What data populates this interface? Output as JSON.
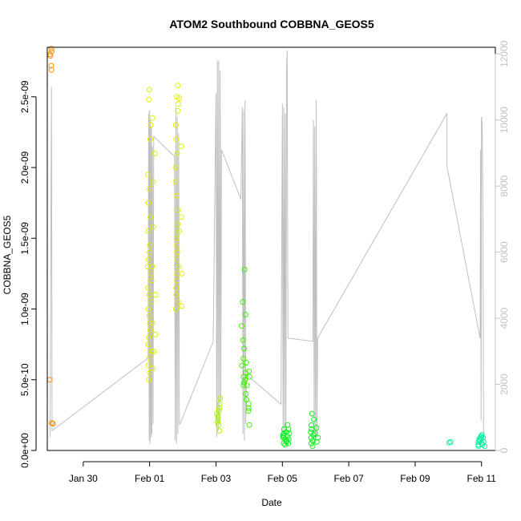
{
  "chart_data": {
    "type": "scatter",
    "title": "ATOM2 Southbound COBBNA_GEOS5",
    "xlabel": "Date",
    "ylabel": "COBBNA_GEOS5",
    "y_ticks": [
      "0.0e+00",
      "5.0e-10",
      "1.0e-09",
      "1.5e-09",
      "2.0e-09",
      "2.5e-09"
    ],
    "y_tick_values": [
      0,
      5e-10,
      1e-09,
      1.5e-09,
      2e-09,
      2.5e-09
    ],
    "ylim": [
      0,
      2.85e-09
    ],
    "x_ticks": [
      "Jan 30",
      "Feb 01",
      "Feb 03",
      "Feb 05",
      "Feb 07",
      "Feb 09",
      "Feb 11"
    ],
    "x_tick_values": [
      "2016-01-30",
      "2016-02-01",
      "2016-02-03",
      "2016-02-05",
      "2016-02-07",
      "2016-02-09",
      "2016-02-11"
    ],
    "xlim": [
      "2016-01-28T22:00",
      "2016-02-11T10:00"
    ],
    "right_axis": {
      "ticks": [
        "0",
        "2000",
        "4000",
        "6000",
        "8000",
        "10000",
        "12000"
      ],
      "tick_values": [
        0,
        2000,
        4000,
        6000,
        8000,
        10000,
        12000
      ],
      "ylim": [
        0,
        12200
      ],
      "color": "#c0c0c0"
    },
    "colors": {
      "orange": "#ff8c00",
      "yellow": "#e0f000",
      "yellow_green": "#b0f000",
      "green": "#40f000",
      "bright_green": "#10f020",
      "teal": "#00f0a0",
      "altitude_line": "#bfbfbf"
    },
    "series": [
      {
        "color": "orange",
        "points": [
          {
            "x": "2016-01-29T01:00",
            "y": [
              2.84e-09,
              2.82e-09,
              2.8e-09,
              2.79e-09,
              2.72e-09,
              2.69e-09,
              5e-10,
              1.9e-10,
              1.95e-10
            ]
          }
        ]
      },
      {
        "color": "yellow",
        "points": [
          {
            "x": "2016-02-01T00:00",
            "y": [
              2.55e-09,
              2.48e-09,
              2.3e-09,
              2.2e-09,
              1.95e-09,
              1.85e-09,
              1.75e-09,
              1.65e-09,
              1.55e-09,
              1.45e-09,
              1.4e-09,
              1.35e-09,
              1.3e-09,
              1.25e-09,
              1.2e-09,
              1.15e-09,
              1.1e-09,
              1.05e-09,
              1e-09,
              9.5e-10,
              9e-10,
              8.5e-10,
              8e-10,
              7.5e-10,
              7e-10,
              6.5e-10,
              6e-10,
              5.5e-10,
              5e-10
            ]
          },
          {
            "x": "2016-02-01T03:00",
            "y": [
              2.35e-09,
              2.1e-09,
              1.9e-09,
              1.58e-09,
              1.3e-09,
              1.1e-09,
              9e-10,
              8.2e-10,
              7e-10,
              5.8e-10
            ]
          },
          {
            "x": "2016-02-01T20:00",
            "y": [
              2.58e-09,
              2.5e-09,
              2.45e-09,
              2.4e-09,
              2.3e-09,
              2.2e-09,
              2.1e-09,
              2e-09,
              1.9e-09,
              1.8e-09,
              1.7e-09,
              1.6e-09,
              1.55e-09,
              1.5e-09,
              1.45e-09,
              1.4e-09,
              1.35e-09,
              1.3e-09,
              1.25e-09,
              1.2e-09,
              1.15e-09,
              1.1e-09,
              1.05e-09,
              1e-09
            ]
          },
          {
            "x": "2016-02-01T22:00",
            "y": [
              2.49e-09,
              2.15e-09,
              1.65e-09,
              1.25e-09,
              1.02e-09
            ]
          }
        ]
      },
      {
        "color": "yellow_green",
        "points": [
          {
            "x": "2016-02-03T02:00",
            "y": [
              3.7e-10,
              3.3e-10,
              3e-10,
              2.8e-10,
              2.6e-10,
              2.4e-10,
              2.2e-10,
              2e-10,
              1.8e-10,
              1.4e-10
            ]
          }
        ]
      },
      {
        "color": "green",
        "points": [
          {
            "x": "2016-02-03T20:00",
            "y": [
              1.28e-09,
              1.05e-09,
              9.6e-10,
              8.8e-10,
              7.8e-10,
              7.2e-10,
              6.5e-10,
              6e-10,
              5.5e-10,
              5.2e-10,
              5e-10,
              4.8e-10,
              4.6e-10
            ]
          },
          {
            "x": "2016-02-03T23:00",
            "y": [
              6.2e-10,
              5.6e-10,
              5.2e-10,
              4.6e-10,
              4e-10,
              3.6e-10,
              3.3e-10,
              3e-10,
              2.8e-10,
              1.8e-10
            ]
          }
        ]
      },
      {
        "color": "bright_green",
        "points": [
          {
            "x": "2016-02-05T02:00",
            "y": [
              1.5e-10,
              1.3e-10,
              1.2e-10,
              1.1e-10,
              1e-10,
              9e-11,
              8e-11,
              7e-11,
              6e-11,
              5e-11,
              4e-11
            ]
          },
          {
            "x": "2016-02-05T05:00",
            "y": [
              1.8e-10,
              1.5e-10,
              1.2e-10,
              1e-10,
              8e-11,
              5e-11
            ]
          },
          {
            "x": "2016-02-05T22:00",
            "y": [
              2.6e-10,
              2.2e-10,
              1.8e-10,
              1.5e-10,
              1.3e-10,
              1.1e-10,
              9e-11,
              7e-11,
              5e-11,
              3e-11
            ]
          },
          {
            "x": "2016-02-06T01:00",
            "y": [
              1.6e-10,
              1.2e-10,
              9e-11,
              6e-11
            ]
          }
        ]
      },
      {
        "color": "teal",
        "points": [
          {
            "x": "2016-02-10T01:00",
            "y": [
              6e-11,
              5.5e-11
            ]
          },
          {
            "x": "2016-02-10T23:00",
            "y": [
              1.1e-10,
              1e-10,
              9e-11,
              8e-11,
              7e-11,
              6e-11,
              5e-11,
              4e-11,
              3e-11
            ]
          },
          {
            "x": "2016-02-11T02:00",
            "y": [
              9e-11,
              6e-11,
              4e-11,
              3e-11
            ]
          }
        ]
      }
    ],
    "altitude_line": [
      [
        "2016-01-29T00:00",
        400
      ],
      [
        "2016-01-29T01:00",
        11000
      ],
      [
        "2016-01-29T01:30",
        600
      ],
      [
        "2016-01-31T23:00",
        2800
      ],
      [
        "2016-01-31T23:20",
        10200
      ],
      [
        "2016-01-31T23:40",
        300
      ],
      [
        "2016-02-01T00:00",
        10300
      ],
      [
        "2016-02-01T00:20",
        200
      ],
      [
        "2016-02-01T00:40",
        10000
      ],
      [
        "2016-02-01T01:00",
        400
      ],
      [
        "2016-02-01T01:20",
        9800
      ],
      [
        "2016-02-01T01:40",
        500
      ],
      [
        "2016-02-01T02:00",
        9200
      ],
      [
        "2016-02-01T02:30",
        800
      ],
      [
        "2016-02-01T03:00",
        9500
      ],
      [
        "2016-02-01T18:00",
        8900
      ],
      [
        "2016-02-01T18:30",
        300
      ],
      [
        "2016-02-01T19:00",
        10400
      ],
      [
        "2016-02-01T19:30",
        200
      ],
      [
        "2016-02-01T20:00",
        10100
      ],
      [
        "2016-02-01T20:30",
        500
      ],
      [
        "2016-02-01T21:00",
        9600
      ],
      [
        "2016-02-01T21:30",
        800
      ],
      [
        "2016-02-01T22:00",
        800
      ],
      [
        "2016-02-02T22:00",
        3300
      ],
      [
        "2016-02-03T00:00",
        10800
      ],
      [
        "2016-02-03T00:30",
        400
      ],
      [
        "2016-02-03T01:00",
        11800
      ],
      [
        "2016-02-03T01:30",
        600
      ],
      [
        "2016-02-03T02:00",
        11800
      ],
      [
        "2016-02-03T02:30",
        800
      ],
      [
        "2016-02-03T03:00",
        11500
      ],
      [
        "2016-02-03T03:30",
        1500
      ],
      [
        "2016-02-03T04:00",
        9100
      ],
      [
        "2016-02-03T18:00",
        7600
      ],
      [
        "2016-02-03T19:00",
        10400
      ],
      [
        "2016-02-03T19:30",
        500
      ],
      [
        "2016-02-03T20:00",
        10300
      ],
      [
        "2016-02-03T20:30",
        300
      ],
      [
        "2016-02-03T21:00",
        10600
      ],
      [
        "2016-02-03T21:30",
        800
      ],
      [
        "2016-02-03T22:00",
        2300
      ],
      [
        "2016-02-04T23:00",
        1400
      ],
      [
        "2016-02-05T00:00",
        10500
      ],
      [
        "2016-02-05T00:30",
        300
      ],
      [
        "2016-02-05T01:00",
        10400
      ],
      [
        "2016-02-05T01:30",
        500
      ],
      [
        "2016-02-05T02:00",
        10200
      ],
      [
        "2016-02-05T02:30",
        400
      ],
      [
        "2016-02-05T03:00",
        11500
      ],
      [
        "2016-02-05T03:30",
        12100
      ],
      [
        "2016-02-05T04:00",
        3400
      ],
      [
        "2016-02-05T22:00",
        3300
      ],
      [
        "2016-02-05T22:30",
        10000
      ],
      [
        "2016-02-05T23:00",
        300
      ],
      [
        "2016-02-05T23:30",
        9800
      ],
      [
        "2016-02-06T00:00",
        200
      ],
      [
        "2016-02-06T00:30",
        10600
      ],
      [
        "2016-02-06T01:00",
        400
      ],
      [
        "2016-02-06T01:30",
        3400
      ],
      [
        "2016-02-09T23:00",
        10200
      ],
      [
        "2016-02-09T23:00",
        8600
      ],
      [
        "2016-02-10T23:00",
        3400
      ],
      [
        "2016-02-10T23:20",
        9100
      ],
      [
        "2016-02-10T23:40",
        900
      ],
      [
        "2016-02-11T00:00",
        10100
      ],
      [
        "2016-02-11T00:30",
        9900
      ],
      [
        "2016-02-11T01:00",
        7300
      ],
      [
        "2016-02-11T01:30",
        300
      ]
    ]
  }
}
